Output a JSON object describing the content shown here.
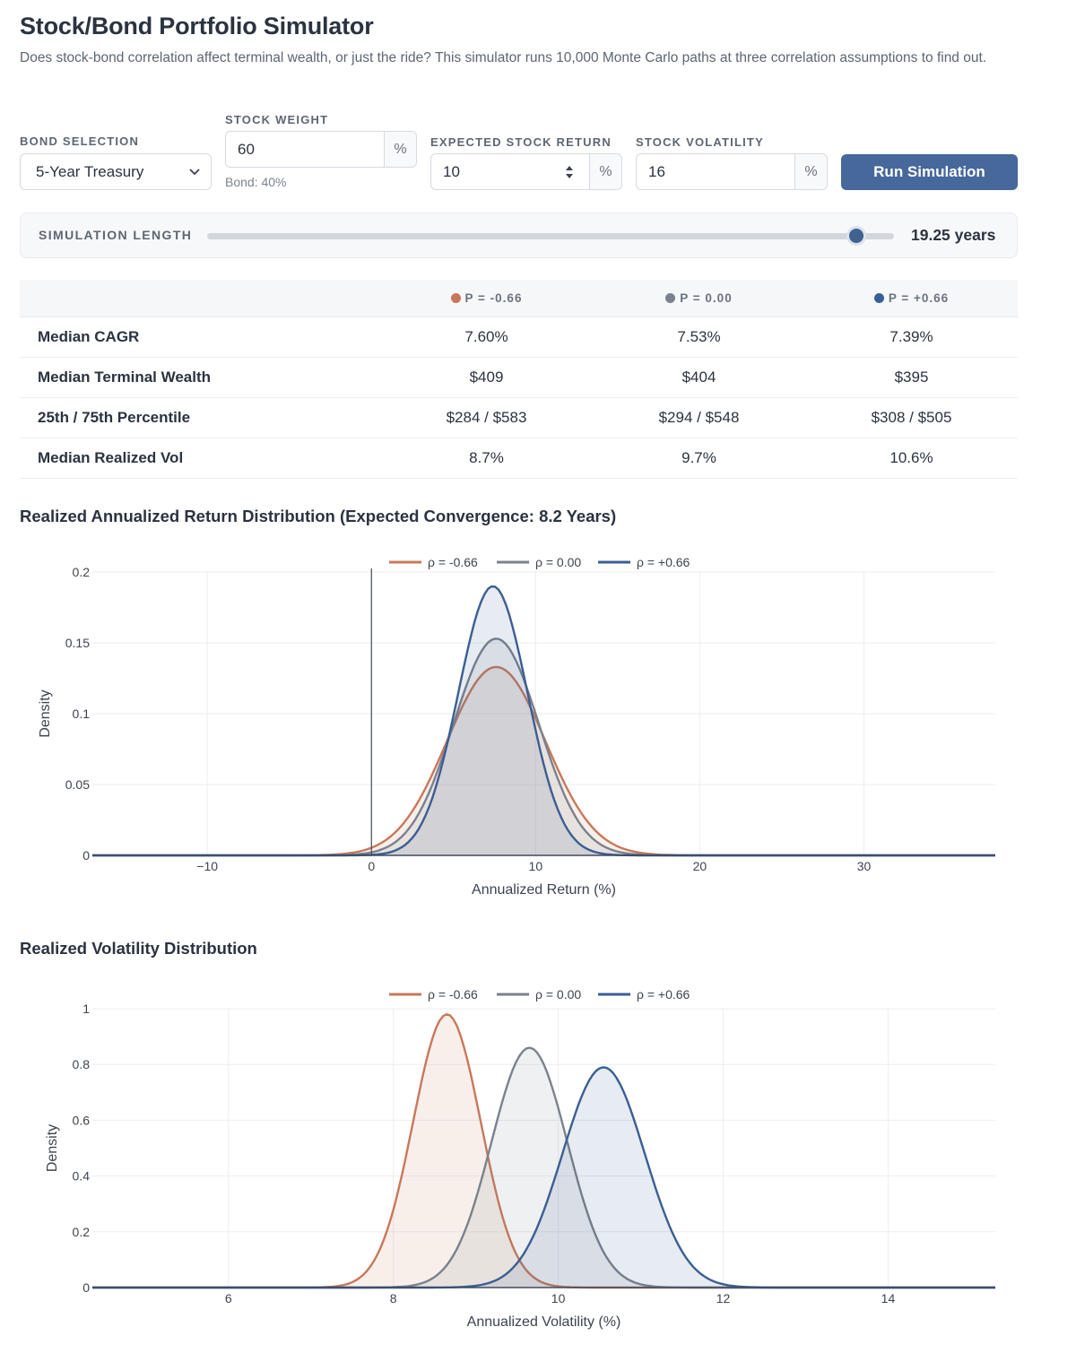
{
  "header": {
    "title": "Stock/Bond Portfolio Simulator",
    "description": "Does stock-bond correlation affect terminal wealth, or just the ride? This simulator runs 10,000 Monte Carlo paths at three correlation assumptions to find out."
  },
  "controls": {
    "bond_selection": {
      "label": "Bond Selection",
      "value": "5-Year Treasury"
    },
    "stock_weight": {
      "label": "Stock Weight",
      "value": "60",
      "unit": "%",
      "note": "Bond: 40%"
    },
    "expected_return": {
      "label": "Expected Stock Return",
      "value": "10",
      "unit": "%"
    },
    "stock_volatility": {
      "label": "Stock Volatility",
      "value": "16",
      "unit": "%"
    },
    "run_button": "Run Simulation",
    "simulation_length": {
      "label": "Simulation Length",
      "value_text": "19.25 years",
      "fraction": 0.945
    }
  },
  "colors": {
    "neg": "#c8785a",
    "zero": "#7a828d",
    "pos": "#3b5e93"
  },
  "stats_table": {
    "columns": [
      "P = -0.66",
      "P = 0.00",
      "P = +0.66"
    ],
    "rows": [
      {
        "label": "Median CAGR",
        "values": [
          "7.60%",
          "7.53%",
          "7.39%"
        ]
      },
      {
        "label": "Median Terminal Wealth",
        "values": [
          "$409",
          "$404",
          "$395"
        ]
      },
      {
        "label": "25th / 75th Percentile",
        "values": [
          "$284 / $583",
          "$294 / $548",
          "$308 / $505"
        ]
      },
      {
        "label": "Median Realized Vol",
        "values": [
          "8.7%",
          "9.7%",
          "10.6%"
        ]
      }
    ]
  },
  "chart_data": [
    {
      "type": "area",
      "title": "Realized Annualized Return Distribution (Expected Convergence: 8.2 Years)",
      "xlabel": "Annualized Return (%)",
      "ylabel": "Density",
      "xlim": [
        -17,
        38
      ],
      "ylim": [
        0,
        0.2
      ],
      "xticks": [
        -10,
        0,
        10,
        20,
        30
      ],
      "xtick_labels": [
        "−10",
        "0",
        "10",
        "20",
        "30"
      ],
      "yticks": [
        0,
        0.05,
        0.1,
        0.15,
        0.2
      ],
      "ytick_labels": [
        "0",
        "0.05",
        "0.1",
        "0.15",
        "0.2"
      ],
      "vline_x": 0,
      "legend": [
        "ρ = -0.66",
        "ρ = 0.00",
        "ρ = +0.66"
      ],
      "series": [
        {
          "name": "ρ = -0.66",
          "key": "neg",
          "mean": 7.6,
          "sd": 3.0,
          "peak": 0.133
        },
        {
          "name": "ρ = 0.00",
          "key": "zero",
          "mean": 7.6,
          "sd": 2.6,
          "peak": 0.153
        },
        {
          "name": "ρ = +0.66",
          "key": "pos",
          "mean": 7.4,
          "sd": 2.1,
          "peak": 0.19
        }
      ]
    },
    {
      "type": "area",
      "title": "Realized Volatility Distribution",
      "xlabel": "Annualized Volatility (%)",
      "ylabel": "Density",
      "xlim": [
        4.35,
        15.3
      ],
      "ylim": [
        0,
        1
      ],
      "xticks": [
        6,
        8,
        10,
        12,
        14
      ],
      "xtick_labels": [
        "6",
        "8",
        "10",
        "12",
        "14"
      ],
      "yticks": [
        0,
        0.2,
        0.4,
        0.6,
        0.8,
        1
      ],
      "ytick_labels": [
        "0",
        "0.2",
        "0.4",
        "0.6",
        "0.8",
        "1"
      ],
      "legend": [
        "ρ = -0.66",
        "ρ = 0.00",
        "ρ = +0.66"
      ],
      "series": [
        {
          "name": "ρ = -0.66",
          "key": "neg",
          "mean": 8.65,
          "sd": 0.41,
          "peak": 0.98
        },
        {
          "name": "ρ = 0.00",
          "key": "zero",
          "mean": 9.65,
          "sd": 0.46,
          "peak": 0.86
        },
        {
          "name": "ρ = +0.66",
          "key": "pos",
          "mean": 10.55,
          "sd": 0.5,
          "peak": 0.79
        }
      ]
    }
  ]
}
